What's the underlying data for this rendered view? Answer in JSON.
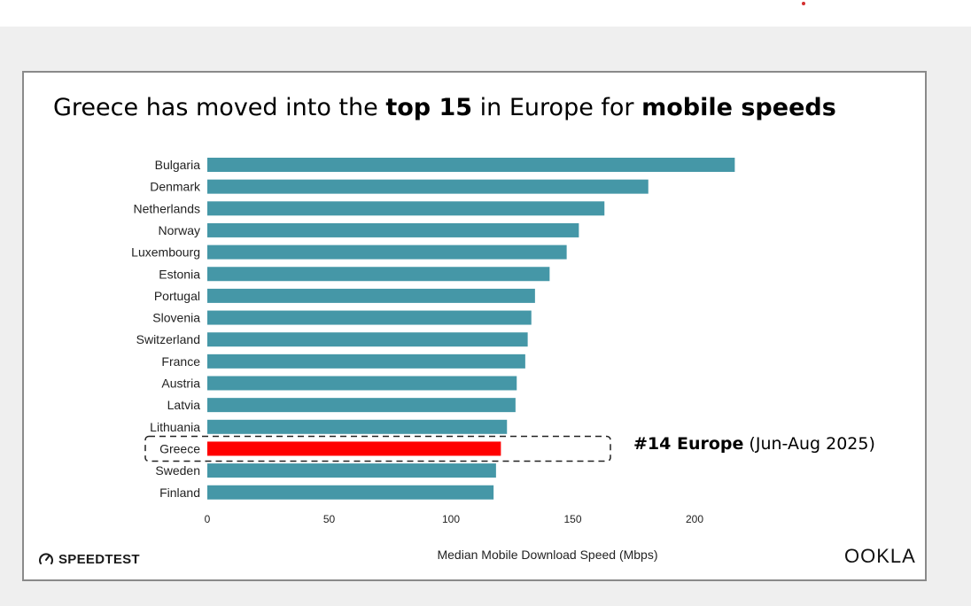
{
  "title": {
    "part1": "Greece has moved into the ",
    "bold1": "top 15",
    "part2": " in Europe for ",
    "bold2": "mobile speeds"
  },
  "annotation": {
    "bold": "#14 Europe",
    "rest": " (Jun-Aug 2025)"
  },
  "logos": {
    "speedtest": "SPEEDTEST",
    "ookla": "OOKLA"
  },
  "colors": {
    "bar": "#4597a7",
    "highlight": "#ff0000"
  },
  "chart_data": {
    "type": "bar",
    "orientation": "horizontal",
    "title": "Greece has moved into the top 15 in Europe for mobile speeds",
    "xlabel": "Median Mobile Download Speed (Mbps)",
    "ylabel": "",
    "xlim": [
      0,
      200
    ],
    "xticks": [
      0,
      50,
      100,
      150,
      200
    ],
    "grid": false,
    "categories": [
      "Bulgaria",
      "Denmark",
      "Netherlands",
      "Norway",
      "Luxembourg",
      "Estonia",
      "Portugal",
      "Slovenia",
      "Switzerland",
      "France",
      "Austria",
      "Latvia",
      "Lithuania",
      "Greece",
      "Sweden",
      "Finland"
    ],
    "values": [
      216.5,
      181,
      163,
      152.5,
      147.5,
      140.5,
      134.5,
      133,
      131.5,
      130.5,
      127,
      126.5,
      123,
      120.5,
      118.5,
      117.5
    ],
    "highlight": "Greece"
  }
}
